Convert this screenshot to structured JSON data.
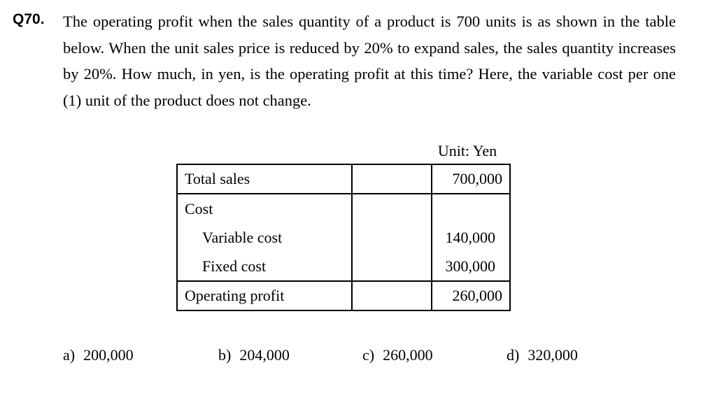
{
  "question": {
    "number": "Q70.",
    "text": "The operating profit when the sales quantity of a product is 700 units is as shown in the table below. When the unit sales price is reduced by 20% to expand sales, the sales quantity increases by 20%. How much, in yen, is the operating profit at this time? Here, the variable cost per one (1) unit of the product does not change."
  },
  "table": {
    "unit_label": "Unit: Yen",
    "total_sales": {
      "label": "Total sales",
      "value": "700,000"
    },
    "cost": {
      "label": "Cost"
    },
    "variable_cost": {
      "label": "Variable cost",
      "value": "140,000"
    },
    "fixed_cost": {
      "label": "Fixed cost",
      "value": "300,000"
    },
    "operating_profit": {
      "label": "Operating profit",
      "value": "260,000"
    }
  },
  "choices": [
    {
      "letter": "a)",
      "value": "200,000"
    },
    {
      "letter": "b)",
      "value": "204,000"
    },
    {
      "letter": "c)",
      "value": "260,000"
    },
    {
      "letter": "d)",
      "value": "320,000"
    }
  ]
}
